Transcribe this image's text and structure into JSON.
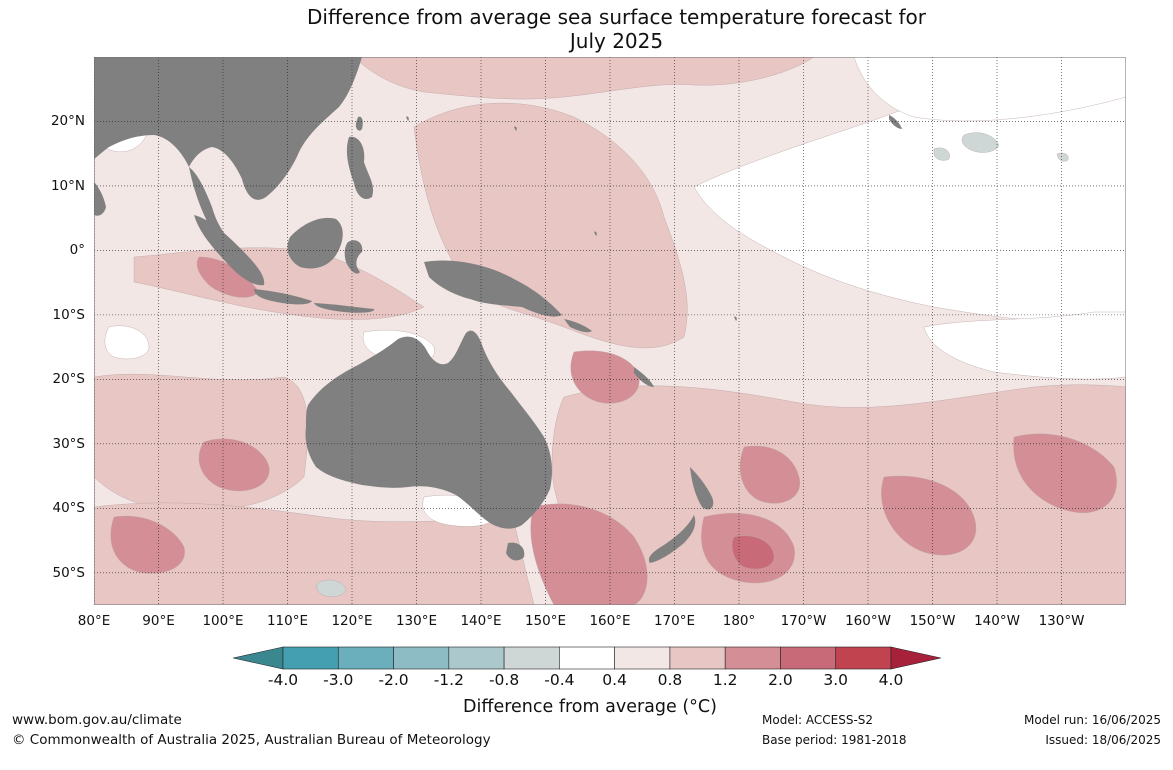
{
  "title_line1": "Difference from average sea surface temperature forecast for",
  "title_line2": "July 2025",
  "map": {
    "lon_range": [
      80,
      240
    ],
    "lat_range": [
      -55,
      30
    ],
    "land_color": "#808080",
    "grid": "dotted",
    "lat_ticks": [
      {
        "lat": 20,
        "label": "20°N"
      },
      {
        "lat": 10,
        "label": "10°N"
      },
      {
        "lat": 0,
        "label": "0°"
      },
      {
        "lat": -10,
        "label": "10°S"
      },
      {
        "lat": -20,
        "label": "20°S"
      },
      {
        "lat": -30,
        "label": "30°S"
      },
      {
        "lat": -40,
        "label": "40°S"
      },
      {
        "lat": -50,
        "label": "50°S"
      }
    ],
    "lon_ticks": [
      {
        "lon": 80,
        "label": "80°E"
      },
      {
        "lon": 90,
        "label": "90°E"
      },
      {
        "lon": 100,
        "label": "100°E"
      },
      {
        "lon": 110,
        "label": "110°E"
      },
      {
        "lon": 120,
        "label": "120°E"
      },
      {
        "lon": 130,
        "label": "130°E"
      },
      {
        "lon": 140,
        "label": "140°E"
      },
      {
        "lon": 150,
        "label": "150°E"
      },
      {
        "lon": 160,
        "label": "160°E"
      },
      {
        "lon": 170,
        "label": "170°E"
      },
      {
        "lon": 180,
        "label": "180°"
      },
      {
        "lon": 190,
        "label": "170°W"
      },
      {
        "lon": 200,
        "label": "160°W"
      },
      {
        "lon": 210,
        "label": "150°W"
      },
      {
        "lon": 220,
        "label": "140°W"
      },
      {
        "lon": 230,
        "label": "130°W"
      }
    ]
  },
  "colorbar": {
    "title": "Difference from average (°C)",
    "ticks": [
      "-4.0",
      "-3.0",
      "-2.0",
      "-1.2",
      "-0.8",
      "-0.4",
      "0.4",
      "0.8",
      "1.2",
      "2.0",
      "3.0",
      "4.0"
    ],
    "bins": [
      {
        "from": -4.0,
        "to": -3.0,
        "color": "#44a0b0"
      },
      {
        "from": -3.0,
        "to": -2.0,
        "color": "#6aafbb"
      },
      {
        "from": -2.0,
        "to": -1.2,
        "color": "#8dbcc4"
      },
      {
        "from": -1.2,
        "to": -0.8,
        "color": "#abc9cc"
      },
      {
        "from": -0.8,
        "to": -0.4,
        "color": "#cfd6d6"
      },
      {
        "from": -0.4,
        "to": 0.4,
        "color": "#ffffff"
      },
      {
        "from": 0.4,
        "to": 0.8,
        "color": "#f3e7e6"
      },
      {
        "from": 0.8,
        "to": 1.2,
        "color": "#e7c6c3"
      },
      {
        "from": 1.2,
        "to": 2.0,
        "color": "#d48e96"
      },
      {
        "from": 2.0,
        "to": 3.0,
        "color": "#c86a77"
      },
      {
        "from": 3.0,
        "to": 4.0,
        "color": "#c0434f"
      }
    ],
    "under_color": "#3b8790",
    "over_color": "#a8213a"
  },
  "footer": {
    "website": "www.bom.gov.au/climate",
    "copyright": "© Commonwealth of Australia 2025, Australian Bureau of Meteorology",
    "model": "Model: ACCESS-S2",
    "base_period": "Base period: 1981-2018",
    "model_run": "Model run: 16/06/2025",
    "issued": "Issued: 18/06/2025"
  }
}
